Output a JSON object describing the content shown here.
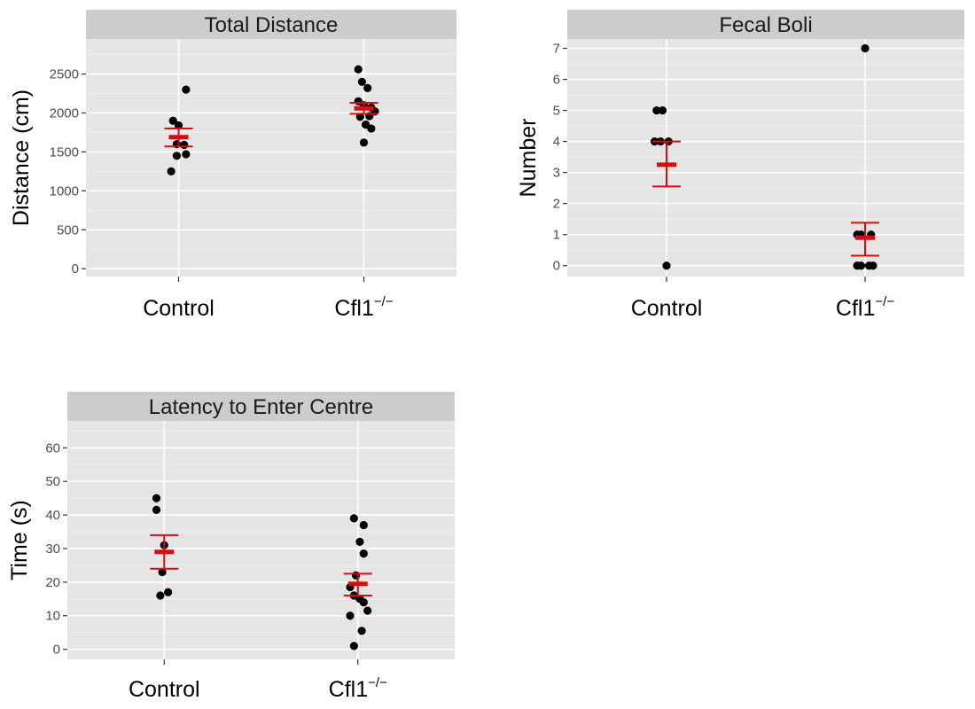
{
  "colors": {
    "panel_background": "#e5e5e5",
    "strip_background": "#cccccc",
    "gridline_major": "#ffffff",
    "gridline_minor": "#f2f2f2",
    "point": "#000000",
    "error_bar": "#d01010"
  },
  "chart_data": [
    {
      "type": "scatter",
      "title": "Total Distance",
      "xlabel": "",
      "ylabel": "Distance (cm)",
      "categories": [
        {
          "base": "Control",
          "sup": ""
        },
        {
          "base": "Cfl1",
          "sup": "−/−"
        }
      ],
      "ylim": [
        -100,
        2950
      ],
      "yticks": [
        0,
        500,
        1000,
        1500,
        2000,
        2500
      ],
      "grid": true,
      "points": [
        {
          "cat": 0,
          "jitter": -0.04,
          "y": 1250
        },
        {
          "cat": 0,
          "jitter": -0.03,
          "y": 1900
        },
        {
          "cat": 0,
          "jitter": 0.0,
          "y": 1840
        },
        {
          "cat": 0,
          "jitter": 0.04,
          "y": 2300
        },
        {
          "cat": 0,
          "jitter": -0.01,
          "y": 1600
        },
        {
          "cat": 0,
          "jitter": 0.03,
          "y": 1590
        },
        {
          "cat": 0,
          "jitter": -0.01,
          "y": 1450
        },
        {
          "cat": 0,
          "jitter": 0.04,
          "y": 1470
        },
        {
          "cat": 1,
          "jitter": -0.03,
          "y": 2560
        },
        {
          "cat": 1,
          "jitter": -0.01,
          "y": 2400
        },
        {
          "cat": 1,
          "jitter": 0.02,
          "y": 2320
        },
        {
          "cat": 1,
          "jitter": -0.03,
          "y": 2150
        },
        {
          "cat": 1,
          "jitter": 0.0,
          "y": 2100
        },
        {
          "cat": 1,
          "jitter": 0.04,
          "y": 2070
        },
        {
          "cat": 1,
          "jitter": 0.06,
          "y": 2020
        },
        {
          "cat": 1,
          "jitter": -0.02,
          "y": 1950
        },
        {
          "cat": 1,
          "jitter": 0.03,
          "y": 1960
        },
        {
          "cat": 1,
          "jitter": 0.01,
          "y": 1850
        },
        {
          "cat": 1,
          "jitter": 0.04,
          "y": 1800
        },
        {
          "cat": 1,
          "jitter": 0.0,
          "y": 1620
        }
      ],
      "summary": [
        {
          "cat": 0,
          "mean": 1690,
          "lower": 1570,
          "upper": 1800
        },
        {
          "cat": 1,
          "mean": 2060,
          "lower": 1990,
          "upper": 2130
        }
      ]
    },
    {
      "type": "scatter",
      "title": "Fecal Boli",
      "xlabel": "",
      "ylabel": "Number",
      "categories": [
        {
          "base": "Control",
          "sup": ""
        },
        {
          "base": "Cfl1",
          "sup": "−/−"
        }
      ],
      "ylim": [
        -0.35,
        7.3
      ],
      "yticks": [
        0,
        1,
        2,
        3,
        4,
        5,
        6,
        7
      ],
      "grid": true,
      "points": [
        {
          "cat": 0,
          "jitter": -0.05,
          "y": 5
        },
        {
          "cat": 0,
          "jitter": -0.02,
          "y": 5
        },
        {
          "cat": 0,
          "jitter": -0.06,
          "y": 4
        },
        {
          "cat": 0,
          "jitter": -0.03,
          "y": 4
        },
        {
          "cat": 0,
          "jitter": 0.01,
          "y": 4
        },
        {
          "cat": 0,
          "jitter": 0.0,
          "y": 0
        },
        {
          "cat": 1,
          "jitter": 0.0,
          "y": 7
        },
        {
          "cat": 1,
          "jitter": -0.04,
          "y": 1
        },
        {
          "cat": 1,
          "jitter": -0.02,
          "y": 1
        },
        {
          "cat": 1,
          "jitter": 0.03,
          "y": 1
        },
        {
          "cat": 1,
          "jitter": -0.04,
          "y": 0
        },
        {
          "cat": 1,
          "jitter": -0.02,
          "y": 0
        },
        {
          "cat": 1,
          "jitter": 0.02,
          "y": 0
        },
        {
          "cat": 1,
          "jitter": 0.04,
          "y": 0
        }
      ],
      "summary": [
        {
          "cat": 0,
          "mean": 3.25,
          "lower": 2.55,
          "upper": 4.0
        },
        {
          "cat": 1,
          "mean": 0.9,
          "lower": 0.32,
          "upper": 1.38
        }
      ]
    },
    {
      "type": "scatter",
      "title": "Latency to Enter Centre",
      "xlabel": "",
      "ylabel": "Time (s)",
      "categories": [
        {
          "base": "Control",
          "sup": ""
        },
        {
          "base": "Cfl1",
          "sup": "−/−"
        }
      ],
      "ylim": [
        -3,
        68
      ],
      "yticks": [
        0,
        10,
        20,
        30,
        40,
        50,
        60
      ],
      "grid": true,
      "points": [
        {
          "cat": 0,
          "jitter": -0.04,
          "y": 45
        },
        {
          "cat": 0,
          "jitter": -0.04,
          "y": 41.5
        },
        {
          "cat": 0,
          "jitter": 0.0,
          "y": 31
        },
        {
          "cat": 0,
          "jitter": -0.01,
          "y": 23
        },
        {
          "cat": 0,
          "jitter": 0.02,
          "y": 17
        },
        {
          "cat": 0,
          "jitter": -0.02,
          "y": 16
        },
        {
          "cat": 1,
          "jitter": -0.02,
          "y": 39
        },
        {
          "cat": 1,
          "jitter": 0.03,
          "y": 37
        },
        {
          "cat": 1,
          "jitter": 0.01,
          "y": 32
        },
        {
          "cat": 1,
          "jitter": 0.03,
          "y": 28.5
        },
        {
          "cat": 1,
          "jitter": -0.01,
          "y": 22
        },
        {
          "cat": 1,
          "jitter": -0.04,
          "y": 18.5
        },
        {
          "cat": 1,
          "jitter": -0.02,
          "y": 16
        },
        {
          "cat": 1,
          "jitter": 0.01,
          "y": 15
        },
        {
          "cat": 1,
          "jitter": 0.03,
          "y": 14
        },
        {
          "cat": 1,
          "jitter": 0.05,
          "y": 11.5
        },
        {
          "cat": 1,
          "jitter": -0.04,
          "y": 10
        },
        {
          "cat": 1,
          "jitter": 0.02,
          "y": 5.5
        },
        {
          "cat": 1,
          "jitter": -0.02,
          "y": 1
        }
      ],
      "summary": [
        {
          "cat": 0,
          "mean": 29,
          "lower": 24,
          "upper": 34
        },
        {
          "cat": 1,
          "mean": 19.5,
          "lower": 16,
          "upper": 22.5
        }
      ]
    }
  ]
}
